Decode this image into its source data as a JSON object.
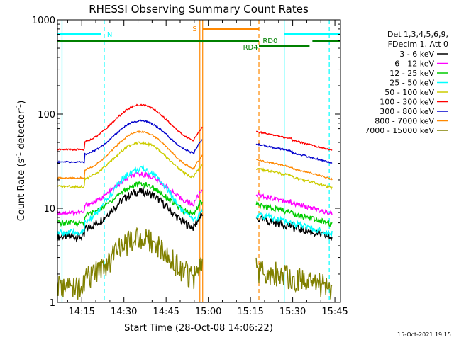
{
  "chart_data": {
    "type": "line",
    "title": "RHESSI Observing Summary Count Rates",
    "xlabel": "Start Time (28-Oct-08 14:06:22)",
    "ylabel": "Count Rate (s",
    "ylabel_sup": "-1",
    "ylabel_rest": " detector",
    "ylabel_sup2": "-1",
    "ylabel_close": ")",
    "y_scale": "log",
    "ylim": [
      1,
      1000
    ],
    "xlim": [
      "14:06:22",
      "15:47:00"
    ],
    "y_ticks": [
      "1",
      "10",
      "100",
      "1000"
    ],
    "x_ticks": [
      "14:15",
      "14:30",
      "14:45",
      "15:00",
      "15:15",
      "15:30",
      "15:45"
    ],
    "timestamp": "15-Oct-2021 19:15",
    "legend_position": "right",
    "legend_header": [
      "Det 1,3,4,5,6,9,",
      "FDecim 1, Att 0"
    ],
    "series": [
      {
        "name": "3 - 6 keV",
        "color": "#000000",
        "base": 5,
        "peak": 15,
        "jump": 0.1
      },
      {
        "name": "6 - 12 keV",
        "color": "#ff00ff",
        "base": 9,
        "peak": 23,
        "jump": 0.06
      },
      {
        "name": "12 - 25 keV",
        "color": "#00cc00",
        "base": 7,
        "peak": 18,
        "jump": 0.07
      },
      {
        "name": "25 - 50 keV",
        "color": "#00ffff",
        "base": 5.5,
        "peak": 26,
        "jump": 0.08
      },
      {
        "name": "50 - 100 keV",
        "color": "#cccc00",
        "base": 17,
        "peak": 50,
        "jump": 0.03
      },
      {
        "name": "100 - 300 keV",
        "color": "#ff0000",
        "base": 42,
        "peak": 125,
        "jump": 0.02
      },
      {
        "name": "300 - 800 keV",
        "color": "#0000cc",
        "base": 31,
        "peak": 85,
        "jump": 0.02
      },
      {
        "name": "800 - 7000 keV",
        "color": "#ff8800",
        "base": 21,
        "peak": 65,
        "jump": 0.02
      },
      {
        "name": "7000 - 15000 keV",
        "color": "#808000",
        "base": 1.5,
        "peak": 5,
        "jump": 0.3
      }
    ],
    "annotations": [
      {
        "label": "N",
        "color": "#00ffff"
      },
      {
        "label": "S",
        "color": "#ff8800"
      },
      {
        "label": "RD0",
        "color": "#008000"
      },
      {
        "label": "RD4",
        "color": "#008000"
      }
    ]
  }
}
